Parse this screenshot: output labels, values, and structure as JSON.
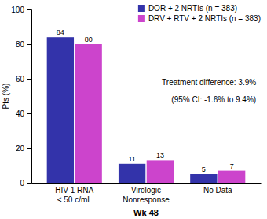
{
  "chart_data": {
    "type": "bar",
    "categories": [
      "HIV-1 RNA\n< 50 c/mL",
      "Virologic\nNonresponse",
      "No Data"
    ],
    "series": [
      {
        "name": "DOR + 2 NRTIs (n = 383)",
        "color": "#3333aa",
        "values": [
          84,
          11,
          5
        ]
      },
      {
        "name": "DRV + RTV + 2 NRTIs (n = 383)",
        "color": "#cc44cc",
        "values": [
          80,
          13,
          7
        ]
      }
    ],
    "ylabel": "Pts (%)",
    "xlabel": "Wk 48",
    "ylim": [
      0,
      100
    ],
    "yticks": [
      0,
      20,
      40,
      60,
      80,
      100
    ],
    "annotations": [
      "Treatment difference: 3.9%",
      "(95% CI: -1.6% to 9.4%)"
    ],
    "data_labels": true,
    "legend": "upper right"
  }
}
